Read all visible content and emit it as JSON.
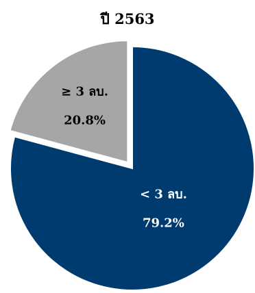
{
  "chart_data": {
    "type": "pie",
    "title": "ปี 2563",
    "slices": [
      {
        "label": "< 3 ลบ.",
        "value": 79.2,
        "display": "79.2%",
        "color": "#003b6f",
        "text_color": "#ffffff",
        "exploded": false
      },
      {
        "label": "≥ 3 ลบ.",
        "value": 20.8,
        "display": "20.8%",
        "color": "#a6a6a6",
        "text_color": "#000000",
        "exploded": true
      }
    ],
    "legend": "none"
  }
}
